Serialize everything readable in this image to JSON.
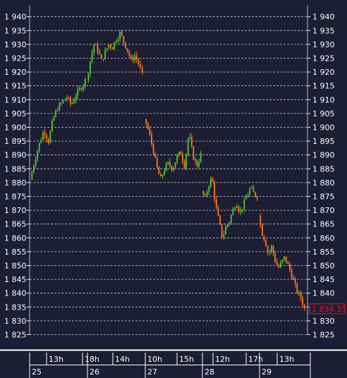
{
  "chart_data": {
    "type": "candlestick",
    "ylim": [
      1825,
      1942
    ],
    "yticks": [
      1940,
      1935,
      1930,
      1925,
      1920,
      1915,
      1910,
      1905,
      1900,
      1895,
      1890,
      1885,
      1880,
      1875,
      1870,
      1865,
      1860,
      1855,
      1850,
      1845,
      1840,
      1835,
      1830,
      1825
    ],
    "ytick_labels": [
      "1 940",
      "1 935",
      "1 930",
      "1 925",
      "1 920",
      "1 915",
      "1 910",
      "1 905",
      "1 900",
      "1 895",
      "1 890",
      "1 885",
      "1 880",
      "1 875",
      "1 870",
      "1 865",
      "1 860",
      "1 855",
      "1 850",
      "1 845",
      "1 840",
      "1 835",
      "1 830",
      "1 825"
    ],
    "grid": true,
    "last_price": 1834.35,
    "last_price_label": "1 834.35",
    "time_labels": [
      {
        "label": "13h",
        "row": "hours"
      },
      {
        "label": "18h",
        "row": "hours"
      },
      {
        "label": "14h",
        "row": "hours"
      },
      {
        "label": "10h",
        "row": "hours"
      },
      {
        "label": "15h",
        "row": "hours"
      },
      {
        "label": "12h",
        "row": "hours"
      },
      {
        "label": "17h",
        "row": "hours"
      },
      {
        "label": "13h",
        "row": "hours"
      },
      {
        "label": "25",
        "row": "days"
      },
      {
        "label": "26",
        "row": "days"
      },
      {
        "label": "27",
        "row": "days"
      },
      {
        "label": "28",
        "row": "days"
      },
      {
        "label": "29",
        "row": "days"
      }
    ],
    "segments": [
      {
        "session": "25",
        "path": [
          1881,
          1888,
          1894,
          1899,
          1895,
          1903,
          1907,
          1909,
          1911,
          1908,
          1912,
          1914,
          1917
        ]
      },
      {
        "session": "26",
        "path": [
          1917,
          1924,
          1930,
          1928,
          1924,
          1927,
          1930,
          1929,
          1932,
          1934,
          1931,
          1928,
          1924,
          1926,
          1923,
          1919
        ]
      },
      {
        "session": "27",
        "path": [
          1903,
          1899,
          1893,
          1886,
          1881,
          1885,
          1887,
          1885,
          1889,
          1891,
          1886,
          1898,
          1890,
          1886,
          1890
        ]
      },
      {
        "session": "28",
        "path": [
          1877,
          1874,
          1879,
          1882,
          1872,
          1866,
          1860,
          1864,
          1866,
          1870,
          1873,
          1869,
          1872,
          1875,
          1878,
          1876,
          1875
        ]
      },
      {
        "session": "29",
        "path": [
          1868,
          1862,
          1859,
          1854,
          1857,
          1852,
          1849,
          1851,
          1853,
          1850,
          1847,
          1843,
          1840,
          1838,
          1834.35
        ]
      }
    ],
    "colors": {
      "background": "#1d1d33",
      "grid": "#c9c9d6",
      "axis_text": "#ffffff",
      "up": "#55ca2a",
      "down": "#ff7a1f",
      "last_price": "#e0192b"
    }
  }
}
